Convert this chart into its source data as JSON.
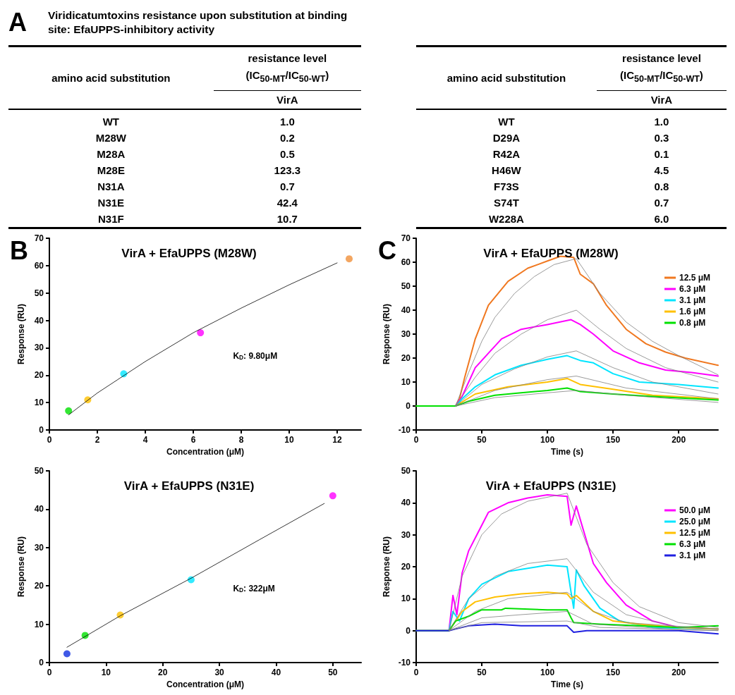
{
  "chart_data": [
    {
      "type": "other",
      "title": "Viridicatumtoxins resistance upon substitution at binding site: EfaUPPS-inhibitory activity",
      "annotations": [
        "A",
        "B",
        "C"
      ],
      "xlabel": "amino acid substitution",
      "ylabel": "resistance level (IC$_{50-MT}$/IC$_{50-WT}$)",
      "categories": [
        "WT",
        "M28W",
        "M28A",
        "M28E",
        "N31A",
        "N31E",
        "N31F"
      ],
      "series": [
        {
          "name": "VirA",
          "values": [
            1.0,
            0.2,
            0.5,
            123.3,
            0.7,
            42.4,
            10.7
          ],
          "value_labels": [
            "1.0",
            "0.2",
            "0.5",
            "123.3",
            "0.7",
            "42.4",
            "10.7"
          ]
        }
      ]
    },
    {
      "type": "other",
      "xlabel": "amino acid substitution",
      "ylabel": "resistance level (IC$_{50-MT}$/IC$_{50-WT}$)",
      "categories": [
        "WT",
        "D29A",
        "R42A",
        "H46W",
        "F73S",
        "S74T",
        "W228A"
      ],
      "series": [
        {
          "name": "VirA",
          "values": [
            1.0,
            0.3,
            0.1,
            4.5,
            0.8,
            0.7,
            6.0
          ],
          "value_labels": [
            "1.0",
            "0.3",
            "0.1",
            "4.5",
            "0.8",
            "0.7",
            "6.0"
          ]
        }
      ]
    },
    {
      "type": "scatter",
      "title": "VirA + EfaUPPS (M28W)",
      "xlabel": "Concentration (μM)",
      "ylabel": "Response (RU)",
      "annotations": [
        "K$_{D}$: 9.80μM"
      ],
      "x": [
        0.8,
        1.6,
        3.1,
        6.3,
        12.5
      ],
      "xlim": [
        0,
        13
      ],
      "xticks": [
        0,
        2,
        4,
        6,
        8,
        10,
        12
      ],
      "ylim": [
        0,
        70
      ],
      "yticks": [
        0,
        10,
        20,
        30,
        40,
        50,
        60,
        70
      ],
      "series": [
        {
          "type": "scatter",
          "marker": "circle",
          "colors": [
            "#00e000",
            "#ffc000",
            "#00e5ff",
            "#ff00ff",
            "#f0903a"
          ],
          "values": [
            7,
            11,
            20.5,
            35.5,
            62.5
          ]
        },
        {
          "type": "line",
          "color": "#000000",
          "x": [
            0.8,
            2,
            4,
            6,
            8,
            10,
            12
          ],
          "values": [
            5.5,
            13.5,
            25,
            35.5,
            44.5,
            53,
            61
          ]
        }
      ]
    },
    {
      "type": "scatter",
      "title": "VirA + EfaUPPS (N31E)",
      "xlabel": "Concentration (μM)",
      "ylabel": "Response (RU)",
      "annotations": [
        "K$_{D}$: 322μM"
      ],
      "x": [
        3.1,
        6.3,
        12.5,
        25,
        50
      ],
      "xlim": [
        0,
        55
      ],
      "xticks": [
        0,
        10,
        20,
        30,
        40,
        50
      ],
      "ylim": [
        0,
        50
      ],
      "yticks": [
        0,
        10,
        20,
        30,
        40,
        50
      ],
      "series": [
        {
          "type": "scatter",
          "marker": "circle",
          "colors": [
            "#1030e0",
            "#00e000",
            "#ffc000",
            "#00e5ff",
            "#ff00ff"
          ],
          "values": [
            2.3,
            7.1,
            12.4,
            21.6,
            43.5
          ]
        },
        {
          "type": "line",
          "color": "#000000",
          "x": [
            3.1,
            12.5,
            25,
            37,
            48.5
          ],
          "values": [
            4,
            12.2,
            22,
            32,
            41.5
          ]
        }
      ]
    },
    {
      "type": "line",
      "title": "VirA + EfaUPPS (M28W)",
      "xlabel": "Time (s)",
      "ylabel": "Response (RU)",
      "legend": "top right",
      "line_style": "solid",
      "xlim": [
        0,
        230
      ],
      "xticks": [
        0,
        50,
        100,
        150,
        200
      ],
      "ylim": [
        -10,
        70
      ],
      "yticks": [
        -10,
        0,
        10,
        20,
        30,
        40,
        50,
        60,
        70
      ],
      "series": [
        {
          "name": "12.5 μM",
          "color": "#f07820",
          "x": [
            0,
            30,
            33,
            37,
            45,
            55,
            70,
            85,
            100,
            110,
            120,
            125,
            135,
            145,
            160,
            175,
            190,
            205,
            230
          ],
          "values": [
            0,
            0,
            3,
            12,
            28,
            42,
            52,
            57.5,
            60.5,
            62.5,
            62,
            55,
            51,
            42,
            32,
            26,
            22.5,
            20,
            17
          ]
        },
        {
          "name": "6.3 μM",
          "color": "#ff00ff",
          "x": [
            0,
            30,
            35,
            40,
            45,
            55,
            65,
            80,
            100,
            118,
            125,
            135,
            150,
            170,
            190,
            210,
            230
          ],
          "values": [
            0,
            0,
            4,
            10,
            16,
            22,
            28,
            32,
            34,
            36,
            34,
            30,
            23,
            18,
            15,
            14,
            12.5
          ]
        },
        {
          "name": "3.1 μM",
          "color": "#00e5ff",
          "x": [
            0,
            30,
            35,
            45,
            60,
            80,
            100,
            115,
            125,
            135,
            150,
            170,
            200,
            230
          ],
          "values": [
            0,
            0,
            3,
            8,
            13,
            17,
            19.5,
            21,
            19,
            18,
            13.5,
            10,
            9,
            7.5
          ]
        },
        {
          "name": "1.6 μM",
          "color": "#ffc000",
          "x": [
            0,
            30,
            45,
            70,
            100,
            115,
            125,
            150,
            180,
            230
          ],
          "values": [
            0,
            0,
            5,
            8,
            10,
            11.5,
            9,
            7,
            4.5,
            3
          ]
        },
        {
          "name": "0.8 μM",
          "color": "#00e000",
          "x": [
            0,
            30,
            40,
            60,
            80,
            100,
            115,
            125,
            150,
            180,
            230
          ],
          "values": [
            0,
            0,
            2,
            4.5,
            5.5,
            6.5,
            7.5,
            6,
            5,
            4,
            2.5
          ]
        },
        {
          "color": "#808080",
          "x": [
            30,
            40,
            50,
            60,
            75,
            90,
            105,
            122,
            140,
            160,
            180,
            200,
            230
          ],
          "values": [
            0,
            14,
            27,
            37,
            47,
            54,
            59,
            61.5,
            47,
            35,
            27,
            21,
            13
          ]
        },
        {
          "color": "#808080",
          "x": [
            30,
            45,
            60,
            80,
            100,
            122,
            140,
            160,
            190,
            230
          ],
          "values": [
            0,
            12,
            22,
            30,
            36,
            40,
            32,
            24,
            16,
            10
          ]
        },
        {
          "color": "#808080",
          "x": [
            30,
            50,
            75,
            100,
            122,
            150,
            180,
            230
          ],
          "values": [
            0,
            9,
            15.5,
            20.5,
            23,
            16,
            10,
            5
          ]
        },
        {
          "color": "#808080",
          "x": [
            30,
            60,
            100,
            122,
            160,
            230
          ],
          "values": [
            0,
            6.5,
            11,
            12.5,
            7.5,
            3
          ]
        },
        {
          "color": "#808080",
          "x": [
            30,
            60,
            100,
            122,
            160,
            230
          ],
          "values": [
            0,
            3.5,
            5.5,
            6.5,
            4.5,
            1.5
          ]
        }
      ]
    },
    {
      "type": "line",
      "title": "VirA + EfaUPPS (N31E)",
      "xlabel": "Time (s)",
      "ylabel": "Response (RU)",
      "legend": "top right",
      "line_style": "solid",
      "xlim": [
        0,
        230
      ],
      "xticks": [
        0,
        50,
        100,
        150,
        200
      ],
      "ylim": [
        -10,
        50
      ],
      "yticks": [
        -10,
        0,
        10,
        20,
        30,
        40,
        50
      ],
      "series": [
        {
          "name": "50.0 μM",
          "color": "#ff00ff",
          "x": [
            0,
            25,
            28,
            31,
            35,
            40,
            45,
            55,
            70,
            85,
            100,
            115,
            118,
            122,
            127,
            135,
            145,
            160,
            180,
            200,
            230
          ],
          "values": [
            0,
            0,
            11,
            5,
            18,
            25,
            29,
            37,
            40,
            41.5,
            42.5,
            42,
            33,
            39,
            32,
            21,
            15,
            8,
            3,
            1,
            0.5
          ]
        },
        {
          "name": "25.0 μM",
          "color": "#00e5ff",
          "x": [
            0,
            25,
            28,
            33,
            40,
            50,
            70,
            100,
            115,
            118,
            120,
            122,
            128,
            140,
            155,
            180,
            230
          ],
          "values": [
            0,
            0,
            6,
            3,
            10,
            14.5,
            18.5,
            20.5,
            20,
            12,
            7,
            19,
            14,
            7,
            3,
            1,
            0.5
          ]
        },
        {
          "name": "12.5 μM",
          "color": "#ffc000",
          "x": [
            0,
            25,
            30,
            35,
            45,
            60,
            80,
            100,
            115,
            118,
            122,
            135,
            150,
            170,
            200,
            230
          ],
          "values": [
            0,
            0,
            3,
            6,
            9,
            10.5,
            11.5,
            12,
            11.5,
            10,
            11,
            6,
            3,
            2,
            1,
            0.5
          ]
        },
        {
          "name": "6.3 μM",
          "color": "#00e000",
          "x": [
            0,
            25,
            30,
            40,
            50,
            65,
            68,
            100,
            115,
            118,
            120,
            140,
            170,
            200,
            230
          ],
          "values": [
            0,
            0,
            3,
            4.5,
            6.5,
            6.5,
            7,
            6.5,
            6.5,
            4,
            2.5,
            2,
            1.5,
            1,
            1.5
          ]
        },
        {
          "name": "3.1 μM",
          "color": "#2020e0",
          "x": [
            0,
            25,
            30,
            40,
            60,
            80,
            100,
            115,
            120,
            130,
            160,
            200,
            230
          ],
          "values": [
            0,
            0,
            0.5,
            1.5,
            2,
            1.5,
            1.5,
            1.5,
            -0.5,
            0,
            0,
            0,
            -1
          ]
        },
        {
          "color": "#808080",
          "x": [
            25,
            35,
            50,
            65,
            85,
            115,
            130,
            150,
            170,
            200,
            230
          ],
          "values": [
            0,
            17,
            30,
            36.5,
            40.5,
            43,
            27,
            15,
            7.5,
            2.5,
            1
          ]
        },
        {
          "color": "#808080",
          "x": [
            25,
            40,
            60,
            85,
            115,
            135,
            160,
            200,
            230
          ],
          "values": [
            0,
            10,
            17,
            21,
            22.5,
            12,
            5,
            1,
            0.5
          ]
        },
        {
          "color": "#808080",
          "x": [
            25,
            45,
            70,
            115,
            135,
            160,
            230
          ],
          "values": [
            0,
            6,
            10,
            12,
            6,
            2.5,
            0.5
          ]
        },
        {
          "color": "#808080",
          "x": [
            25,
            50,
            80,
            115,
            135,
            200,
            230
          ],
          "values": [
            0,
            4,
            5,
            6,
            2,
            0.3,
            0
          ]
        },
        {
          "color": "#808080",
          "x": [
            25,
            50,
            115,
            140,
            230
          ],
          "values": [
            0,
            2.5,
            3,
            1,
            0
          ]
        }
      ]
    }
  ]
}
